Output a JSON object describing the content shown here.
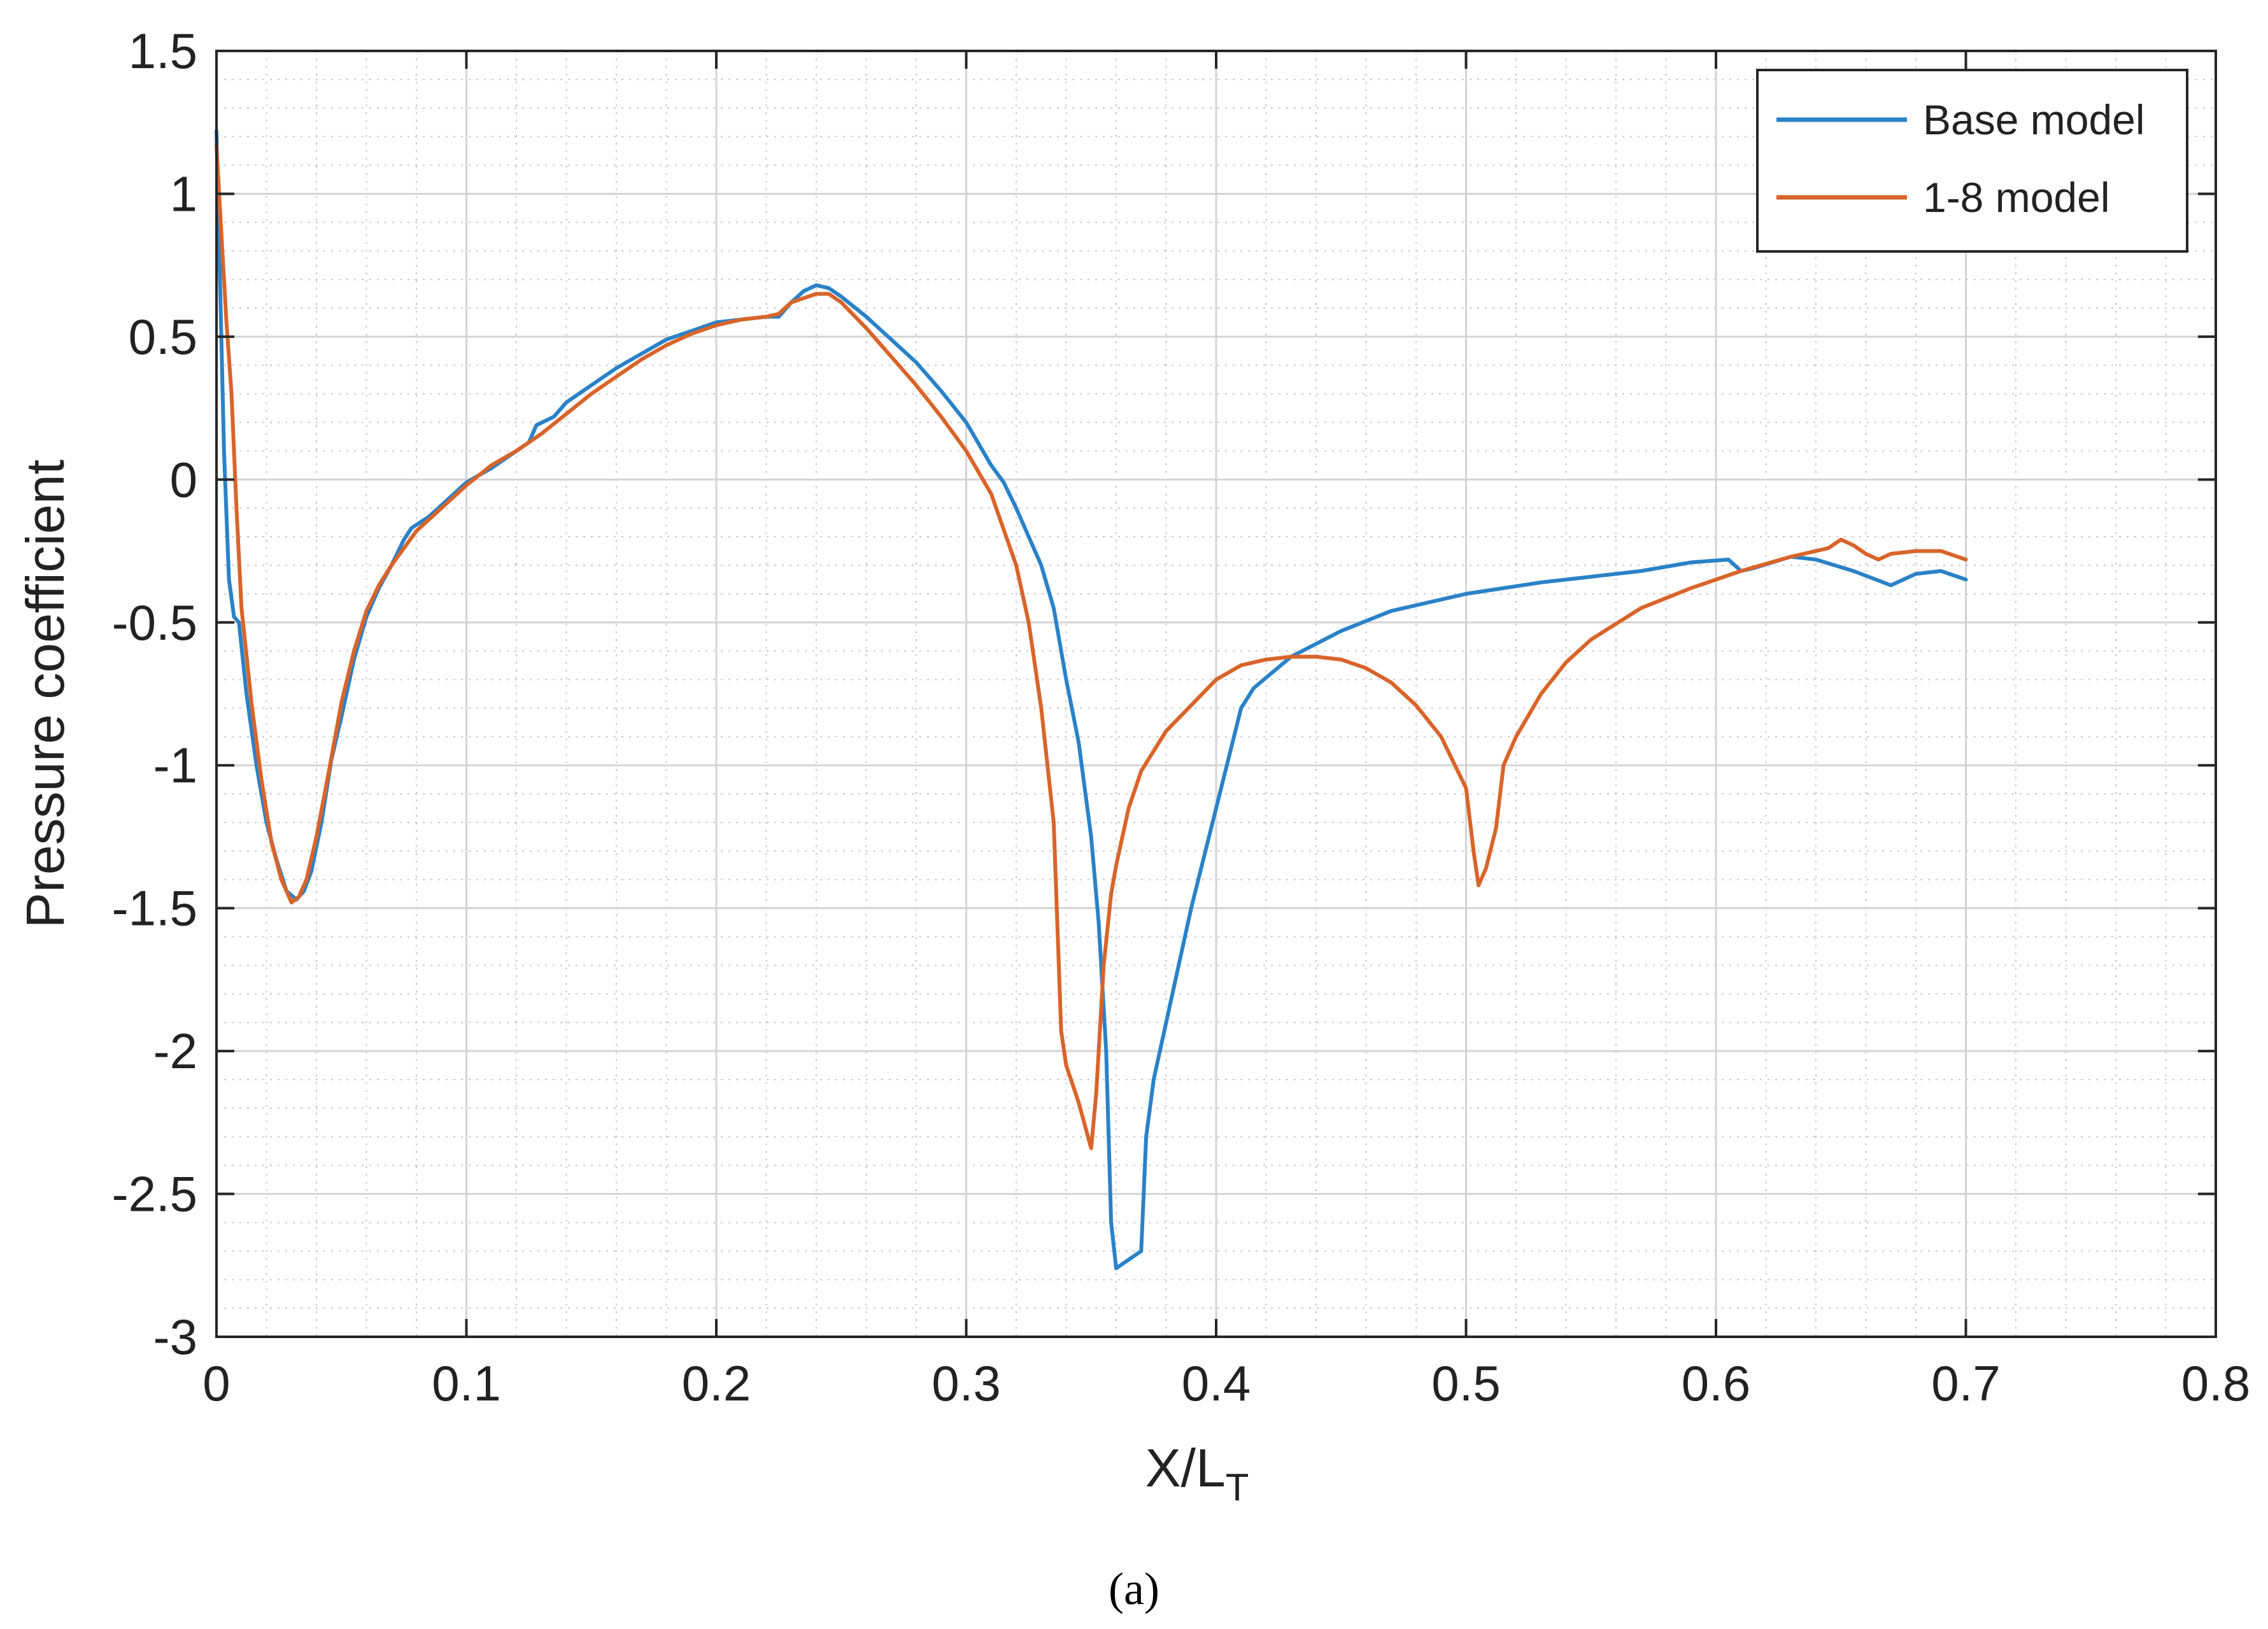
{
  "chart_data": {
    "type": "line",
    "title": "",
    "xlabel": "X/L",
    "xlabel_subscript": "T",
    "ylabel": "Pressure coefficient",
    "xlim": [
      0,
      0.8
    ],
    "ylim": [
      -3,
      1.5
    ],
    "xticks": [
      0,
      0.1,
      0.2,
      0.3,
      0.4,
      0.5,
      0.6,
      0.7,
      0.8
    ],
    "xtick_labels": [
      "0",
      "0.1",
      "0.2",
      "0.3",
      "0.4",
      "0.5",
      "0.6",
      "0.7",
      "0.8"
    ],
    "yticks": [
      1.5,
      1,
      0.5,
      0,
      -0.5,
      -1,
      -1.5,
      -2,
      -2.5,
      -3
    ],
    "ytick_labels": [
      "1.5",
      "1",
      "0.5",
      "0",
      "-0.5",
      "-1",
      "-1.5",
      "-2",
      "-2.5",
      "-3"
    ],
    "grid": true,
    "minor_grid": true,
    "legend_position": "top-right",
    "series": [
      {
        "name": "Base model",
        "color": "#2a82c8",
        "points": [
          [
            0,
            1.22
          ],
          [
            0.001,
            0.85
          ],
          [
            0.003,
            0.1
          ],
          [
            0.005,
            -0.35
          ],
          [
            0.007,
            -0.48
          ],
          [
            0.009,
            -0.5
          ],
          [
            0.012,
            -0.75
          ],
          [
            0.016,
            -1.0
          ],
          [
            0.02,
            -1.2
          ],
          [
            0.024,
            -1.33
          ],
          [
            0.028,
            -1.44
          ],
          [
            0.032,
            -1.47
          ],
          [
            0.035,
            -1.44
          ],
          [
            0.038,
            -1.37
          ],
          [
            0.042,
            -1.2
          ],
          [
            0.046,
            -0.98
          ],
          [
            0.05,
            -0.83
          ],
          [
            0.055,
            -0.63
          ],
          [
            0.06,
            -0.48
          ],
          [
            0.065,
            -0.38
          ],
          [
            0.07,
            -0.3
          ],
          [
            0.075,
            -0.21
          ],
          [
            0.078,
            -0.17
          ],
          [
            0.085,
            -0.13
          ],
          [
            0.095,
            -0.05
          ],
          [
            0.1,
            -0.01
          ],
          [
            0.11,
            0.04
          ],
          [
            0.12,
            0.1
          ],
          [
            0.125,
            0.13
          ],
          [
            0.128,
            0.19
          ],
          [
            0.135,
            0.22
          ],
          [
            0.14,
            0.27
          ],
          [
            0.15,
            0.33
          ],
          [
            0.16,
            0.39
          ],
          [
            0.17,
            0.44
          ],
          [
            0.18,
            0.49
          ],
          [
            0.19,
            0.52
          ],
          [
            0.2,
            0.55
          ],
          [
            0.21,
            0.56
          ],
          [
            0.22,
            0.57
          ],
          [
            0.225,
            0.57
          ],
          [
            0.23,
            0.62
          ],
          [
            0.235,
            0.66
          ],
          [
            0.24,
            0.68
          ],
          [
            0.245,
            0.67
          ],
          [
            0.25,
            0.64
          ],
          [
            0.26,
            0.57
          ],
          [
            0.27,
            0.49
          ],
          [
            0.28,
            0.41
          ],
          [
            0.29,
            0.31
          ],
          [
            0.3,
            0.2
          ],
          [
            0.31,
            0.05
          ],
          [
            0.315,
            -0.01
          ],
          [
            0.32,
            -0.1
          ],
          [
            0.325,
            -0.2
          ],
          [
            0.33,
            -0.3
          ],
          [
            0.335,
            -0.45
          ],
          [
            0.34,
            -0.7
          ],
          [
            0.345,
            -0.92
          ],
          [
            0.35,
            -1.25
          ],
          [
            0.353,
            -1.55
          ],
          [
            0.356,
            -2.0
          ],
          [
            0.358,
            -2.6
          ],
          [
            0.36,
            -2.76
          ],
          [
            0.365,
            -2.73
          ],
          [
            0.37,
            -2.7
          ],
          [
            0.372,
            -2.3
          ],
          [
            0.375,
            -2.1
          ],
          [
            0.38,
            -1.9
          ],
          [
            0.39,
            -1.5
          ],
          [
            0.4,
            -1.15
          ],
          [
            0.41,
            -0.8
          ],
          [
            0.415,
            -0.73
          ],
          [
            0.43,
            -0.62
          ],
          [
            0.45,
            -0.53
          ],
          [
            0.47,
            -0.46
          ],
          [
            0.5,
            -0.4
          ],
          [
            0.53,
            -0.36
          ],
          [
            0.55,
            -0.34
          ],
          [
            0.57,
            -0.32
          ],
          [
            0.59,
            -0.29
          ],
          [
            0.605,
            -0.28
          ],
          [
            0.61,
            -0.32
          ],
          [
            0.615,
            -0.31
          ],
          [
            0.63,
            -0.27
          ],
          [
            0.64,
            -0.28
          ],
          [
            0.655,
            -0.32
          ],
          [
            0.67,
            -0.37
          ],
          [
            0.68,
            -0.33
          ],
          [
            0.69,
            -0.32
          ],
          [
            0.7,
            -0.35
          ]
        ]
      },
      {
        "name": "1-8 model",
        "color": "#d9642a",
        "points": [
          [
            0,
            1.17
          ],
          [
            0.002,
            0.85
          ],
          [
            0.004,
            0.55
          ],
          [
            0.006,
            0.3
          ],
          [
            0.008,
            -0.1
          ],
          [
            0.01,
            -0.45
          ],
          [
            0.014,
            -0.78
          ],
          [
            0.018,
            -1.05
          ],
          [
            0.022,
            -1.27
          ],
          [
            0.026,
            -1.4
          ],
          [
            0.03,
            -1.48
          ],
          [
            0.033,
            -1.46
          ],
          [
            0.036,
            -1.4
          ],
          [
            0.04,
            -1.25
          ],
          [
            0.045,
            -1.02
          ],
          [
            0.05,
            -0.78
          ],
          [
            0.055,
            -0.6
          ],
          [
            0.06,
            -0.46
          ],
          [
            0.065,
            -0.37
          ],
          [
            0.07,
            -0.3
          ],
          [
            0.08,
            -0.18
          ],
          [
            0.09,
            -0.1
          ],
          [
            0.1,
            -0.02
          ],
          [
            0.11,
            0.05
          ],
          [
            0.12,
            0.1
          ],
          [
            0.13,
            0.16
          ],
          [
            0.14,
            0.23
          ],
          [
            0.15,
            0.3
          ],
          [
            0.16,
            0.36
          ],
          [
            0.17,
            0.42
          ],
          [
            0.18,
            0.47
          ],
          [
            0.19,
            0.51
          ],
          [
            0.2,
            0.54
          ],
          [
            0.21,
            0.56
          ],
          [
            0.22,
            0.57
          ],
          [
            0.225,
            0.58
          ],
          [
            0.23,
            0.62
          ],
          [
            0.24,
            0.65
          ],
          [
            0.245,
            0.65
          ],
          [
            0.25,
            0.62
          ],
          [
            0.26,
            0.53
          ],
          [
            0.27,
            0.43
          ],
          [
            0.28,
            0.33
          ],
          [
            0.29,
            0.22
          ],
          [
            0.3,
            0.1
          ],
          [
            0.31,
            -0.05
          ],
          [
            0.32,
            -0.3
          ],
          [
            0.325,
            -0.5
          ],
          [
            0.33,
            -0.8
          ],
          [
            0.335,
            -1.2
          ],
          [
            0.338,
            -1.93
          ],
          [
            0.34,
            -2.05
          ],
          [
            0.345,
            -2.18
          ],
          [
            0.35,
            -2.34
          ],
          [
            0.352,
            -2.15
          ],
          [
            0.355,
            -1.7
          ],
          [
            0.358,
            -1.45
          ],
          [
            0.36,
            -1.35
          ],
          [
            0.365,
            -1.15
          ],
          [
            0.37,
            -1.02
          ],
          [
            0.38,
            -0.88
          ],
          [
            0.39,
            -0.79
          ],
          [
            0.4,
            -0.7
          ],
          [
            0.41,
            -0.65
          ],
          [
            0.42,
            -0.63
          ],
          [
            0.43,
            -0.62
          ],
          [
            0.44,
            -0.62
          ],
          [
            0.45,
            -0.63
          ],
          [
            0.46,
            -0.66
          ],
          [
            0.47,
            -0.71
          ],
          [
            0.48,
            -0.79
          ],
          [
            0.49,
            -0.9
          ],
          [
            0.5,
            -1.08
          ],
          [
            0.503,
            -1.3
          ],
          [
            0.505,
            -1.42
          ],
          [
            0.508,
            -1.36
          ],
          [
            0.512,
            -1.22
          ],
          [
            0.515,
            -1.0
          ],
          [
            0.52,
            -0.9
          ],
          [
            0.53,
            -0.75
          ],
          [
            0.54,
            -0.64
          ],
          [
            0.55,
            -0.56
          ],
          [
            0.57,
            -0.45
          ],
          [
            0.59,
            -0.38
          ],
          [
            0.61,
            -0.32
          ],
          [
            0.63,
            -0.27
          ],
          [
            0.64,
            -0.25
          ],
          [
            0.645,
            -0.24
          ],
          [
            0.65,
            -0.21
          ],
          [
            0.655,
            -0.23
          ],
          [
            0.66,
            -0.26
          ],
          [
            0.665,
            -0.28
          ],
          [
            0.67,
            -0.26
          ],
          [
            0.68,
            -0.25
          ],
          [
            0.69,
            -0.25
          ],
          [
            0.7,
            -0.28
          ]
        ]
      }
    ]
  },
  "caption": "(a)"
}
